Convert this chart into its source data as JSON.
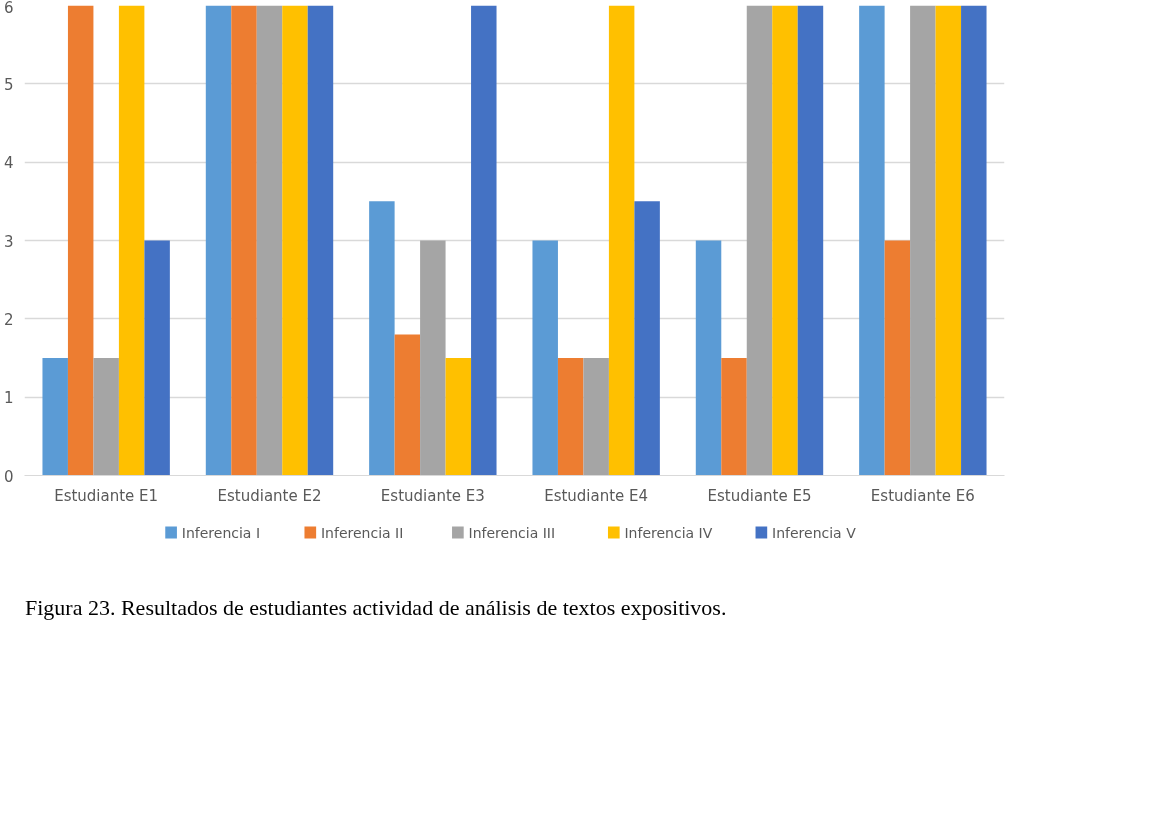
{
  "chart_data": {
    "type": "bar",
    "categories": [
      "Estudiante E1",
      "Estudiante E2",
      "Estudiante E3",
      "Estudiante E4",
      "Estudiante E5",
      "Estudiante E6"
    ],
    "series": [
      {
        "name": "Inferencia I",
        "color": "#5b9bd5",
        "values": [
          1.5,
          6,
          3.5,
          3,
          3,
          6
        ]
      },
      {
        "name": "Inferencia II",
        "color": "#ed7d31",
        "values": [
          6,
          6,
          1.8,
          1.5,
          1.5,
          3
        ]
      },
      {
        "name": "Inferencia III",
        "color": "#a5a5a5",
        "values": [
          1.5,
          6,
          3,
          1.5,
          6,
          6
        ]
      },
      {
        "name": "Inferencia IV",
        "color": "#ffc000",
        "values": [
          6,
          6,
          1.5,
          6,
          6,
          6
        ]
      },
      {
        "name": "Inferencia V",
        "color": "#4472c4",
        "values": [
          3,
          6,
          6,
          3.5,
          6,
          6
        ]
      }
    ],
    "ylim": [
      0,
      6
    ],
    "yticks": [
      0,
      1,
      2,
      3,
      4,
      5,
      6
    ],
    "grid": "y",
    "legend": "bottom",
    "annotations": [
      "Figura 23. Resultados de estudiantes actividad de análisis de textos expositivos."
    ]
  }
}
